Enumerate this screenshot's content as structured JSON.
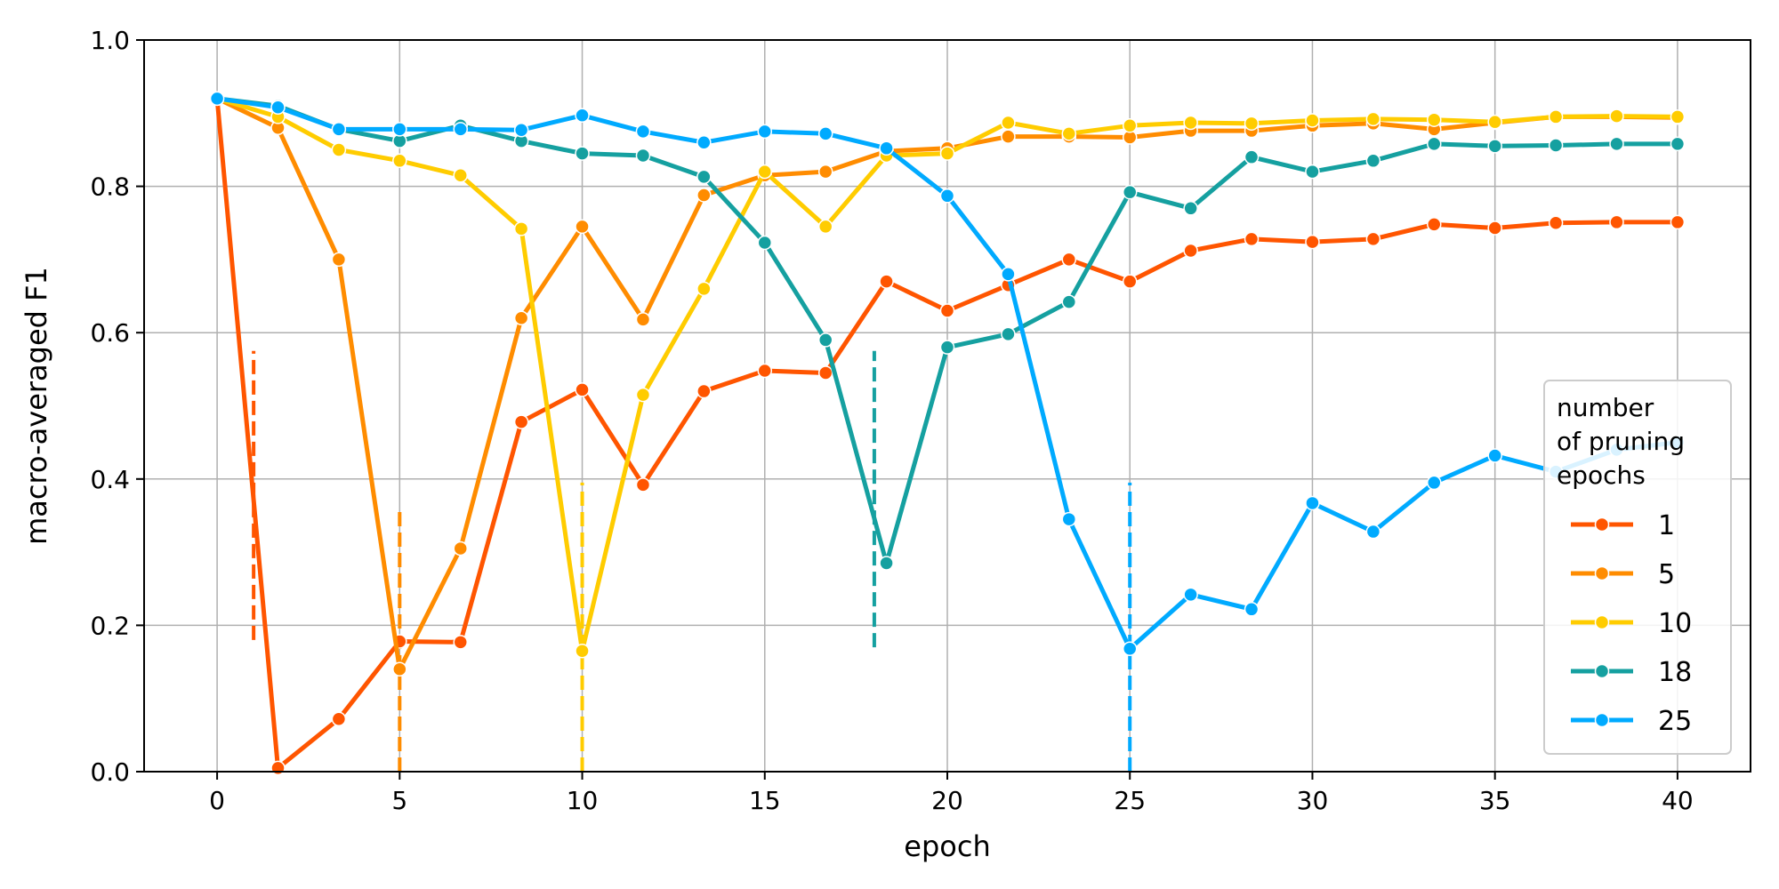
{
  "chart_data": {
    "type": "line",
    "xlabel": "epoch",
    "ylabel": "macro-averaged F1",
    "xlim": [
      -2,
      42
    ],
    "ylim": [
      0,
      1.0
    ],
    "xticks": [
      "0",
      "5",
      "10",
      "15",
      "20",
      "25",
      "30",
      "35",
      "40"
    ],
    "yticks": [
      "0.0",
      "0.2",
      "0.4",
      "0.6",
      "0.8",
      "1.0"
    ],
    "grid": true,
    "legend": {
      "title": [
        "number",
        "of pruning",
        "epochs"
      ],
      "placement": "lower-right"
    },
    "x": [
      0,
      1.667,
      3.333,
      5,
      6.667,
      8.333,
      10,
      11.667,
      13.333,
      15,
      16.667,
      18.333,
      20,
      21.667,
      23.333,
      25,
      26.667,
      28.333,
      30,
      31.667,
      33.333,
      35,
      36.667,
      38.333,
      40
    ],
    "series": [
      {
        "name": "1",
        "color": "#ff5500",
        "prune_epoch": 1,
        "marker_range": [
          0.18,
          0.575
        ],
        "values": [
          0.92,
          0.005,
          0.072,
          0.178,
          0.177,
          0.478,
          0.522,
          0.392,
          0.52,
          0.548,
          0.545,
          0.67,
          0.63,
          0.665,
          0.7,
          0.67,
          0.712,
          0.728,
          0.724,
          0.728,
          0.748,
          0.743,
          0.75,
          0.751,
          0.751
        ]
      },
      {
        "name": "5",
        "color": "#ff8c00",
        "prune_epoch": 5,
        "marker_range": [
          0.0,
          0.355
        ],
        "values": [
          0.92,
          0.88,
          0.7,
          0.14,
          0.305,
          0.62,
          0.745,
          0.618,
          0.788,
          0.815,
          0.82,
          0.848,
          0.852,
          0.868,
          0.868,
          0.867,
          0.876,
          0.876,
          0.883,
          0.886,
          0.878,
          0.887,
          0.895,
          0.895,
          0.894
        ]
      },
      {
        "name": "10",
        "color": "#ffcc00",
        "prune_epoch": 10,
        "marker_range": [
          0.0,
          0.395
        ],
        "values": [
          0.92,
          0.895,
          0.85,
          0.835,
          0.815,
          0.742,
          0.165,
          0.515,
          0.66,
          0.82,
          0.745,
          0.842,
          0.845,
          0.887,
          0.872,
          0.883,
          0.887,
          0.886,
          0.89,
          0.892,
          0.891,
          0.888,
          0.895,
          0.896,
          0.895
        ]
      },
      {
        "name": "18",
        "color": "#15a0a0",
        "prune_epoch": 18,
        "marker_range": [
          0.17,
          0.575
        ],
        "values": [
          0.92,
          0.91,
          0.878,
          0.862,
          0.883,
          0.862,
          0.845,
          0.842,
          0.813,
          0.723,
          0.59,
          0.285,
          0.58,
          0.598,
          0.642,
          0.792,
          0.77,
          0.84,
          0.82,
          0.835,
          0.858,
          0.855,
          0.856,
          0.858,
          0.858
        ]
      },
      {
        "name": "25",
        "color": "#00aaff",
        "prune_epoch": 25,
        "marker_range": [
          0.0,
          0.395
        ],
        "values": [
          0.92,
          0.908,
          0.878,
          0.878,
          0.878,
          0.877,
          0.897,
          0.875,
          0.86,
          0.875,
          0.872,
          0.852,
          0.787,
          0.68,
          0.345,
          0.168,
          0.242,
          0.222,
          0.367,
          0.328,
          0.395,
          0.432,
          0.41,
          0.44,
          0.45
        ]
      }
    ]
  }
}
